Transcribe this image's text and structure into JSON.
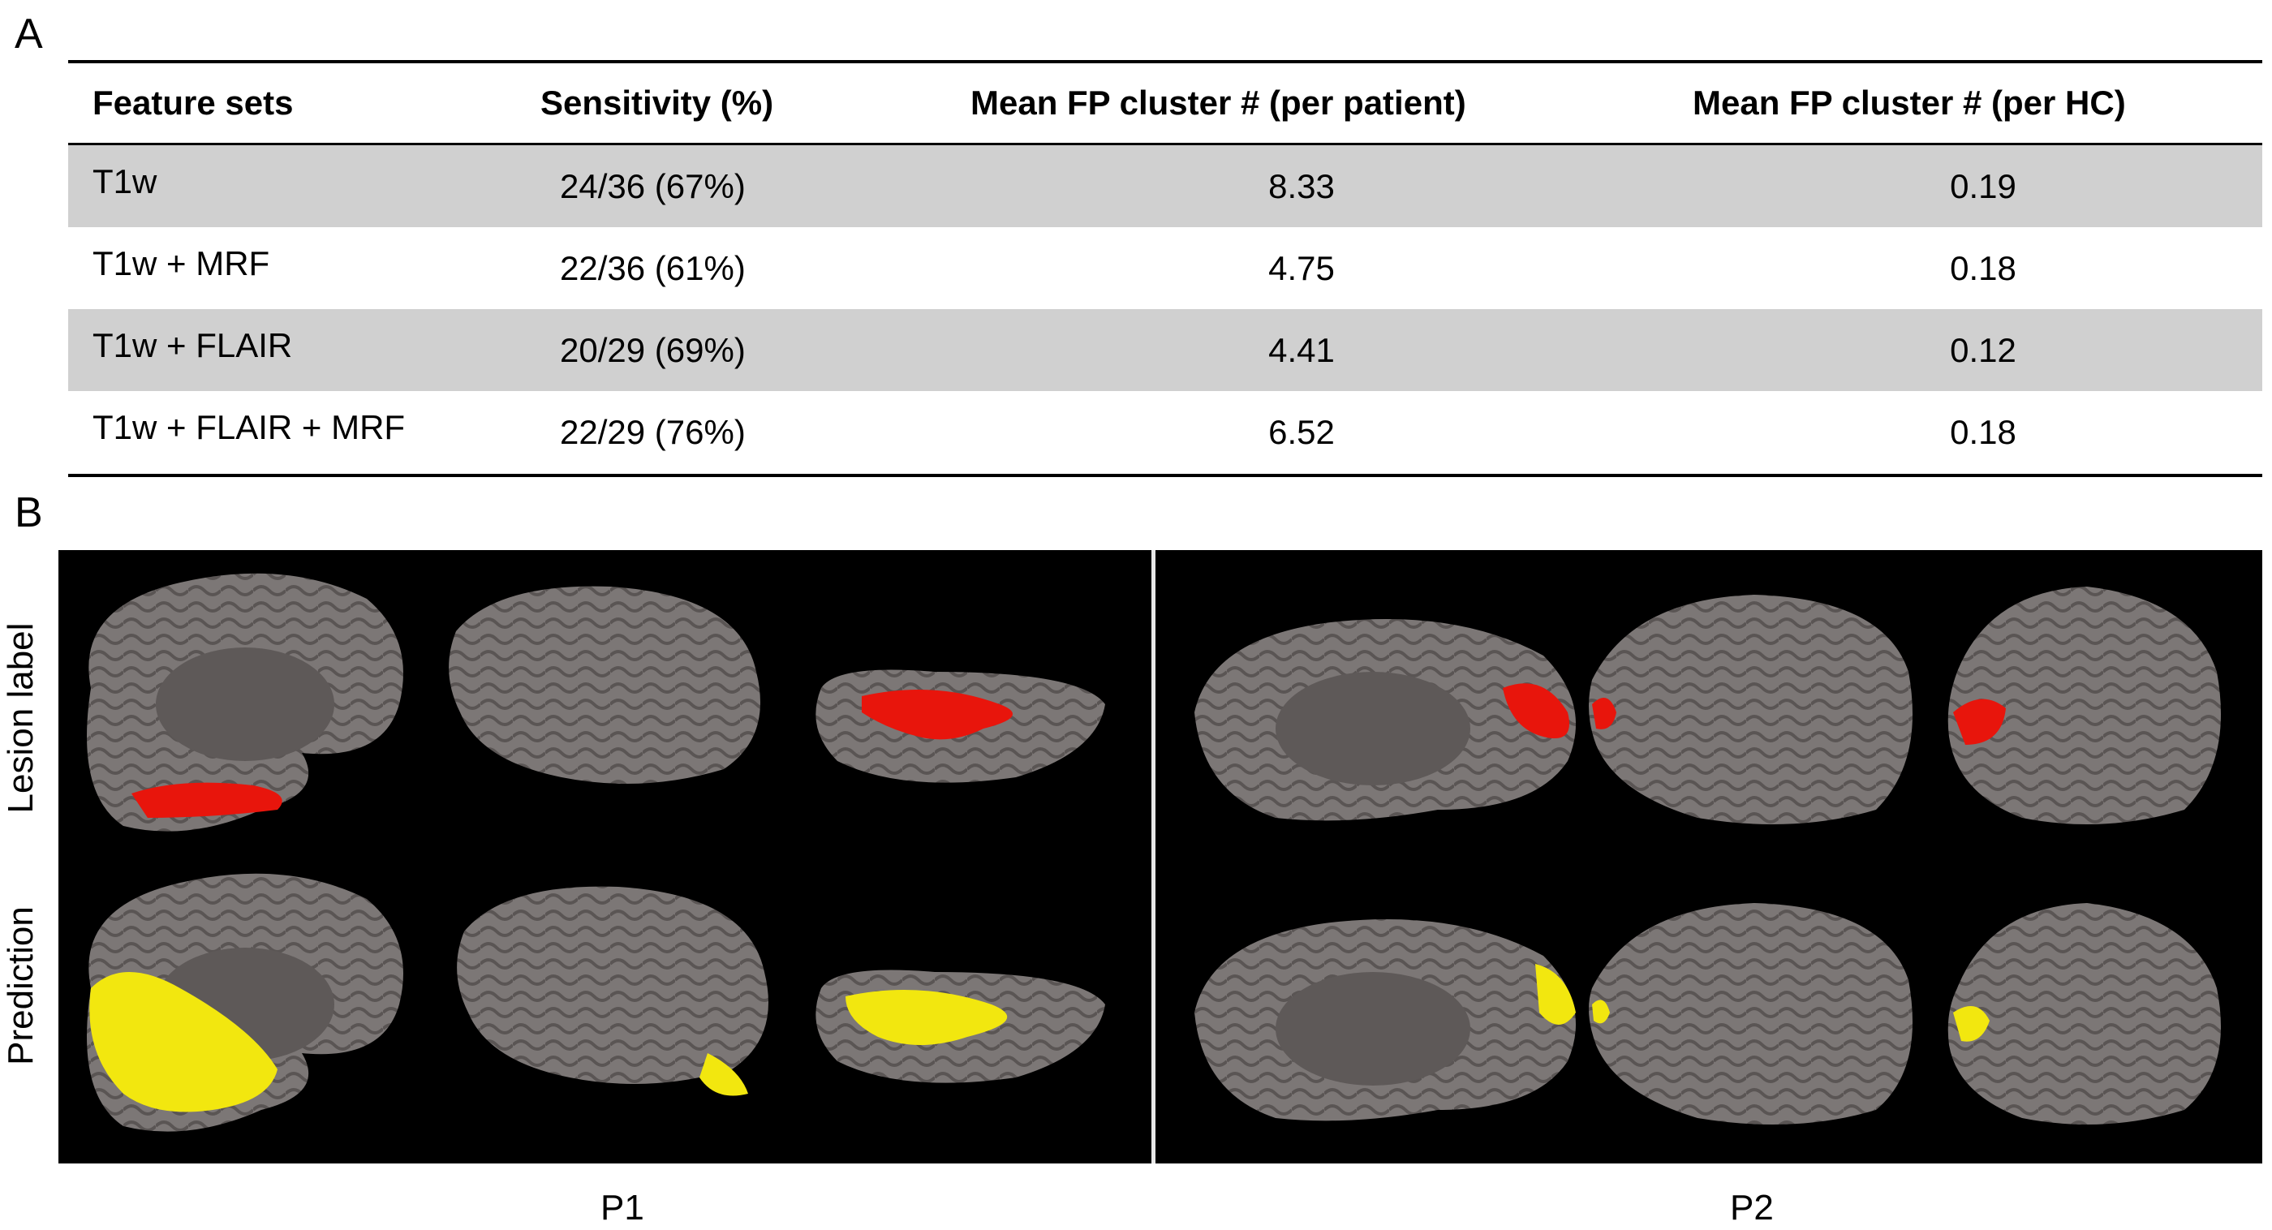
{
  "panels": {
    "a": "A",
    "b": "B"
  },
  "table": {
    "headers": [
      "Feature sets",
      "Sensitivity (%)",
      "Mean FP cluster # (per patient)",
      "Mean FP cluster # (per HC)"
    ],
    "rows": [
      [
        "T1w",
        "24/36 (67%)",
        "8.33",
        "0.19"
      ],
      [
        "T1w + MRF",
        "22/36 (61%)",
        "4.75",
        "0.18"
      ],
      [
        "T1w + FLAIR",
        "20/29 (69%)",
        "4.41",
        "0.12"
      ],
      [
        "T1w + FLAIR + MRF",
        "22/29 (76%)",
        "6.52",
        "0.18"
      ]
    ],
    "shaded_row_color": "#d0d0d0"
  },
  "figure": {
    "row_labels": [
      "Lesion label",
      "Prediction"
    ],
    "patients": [
      "P1",
      "P2"
    ],
    "colors": {
      "brain": "#7a7574",
      "brain_dark": "#5f5a59",
      "lesion": "#e8150c",
      "prediction": "#f2e70f",
      "background": "#000000"
    }
  }
}
